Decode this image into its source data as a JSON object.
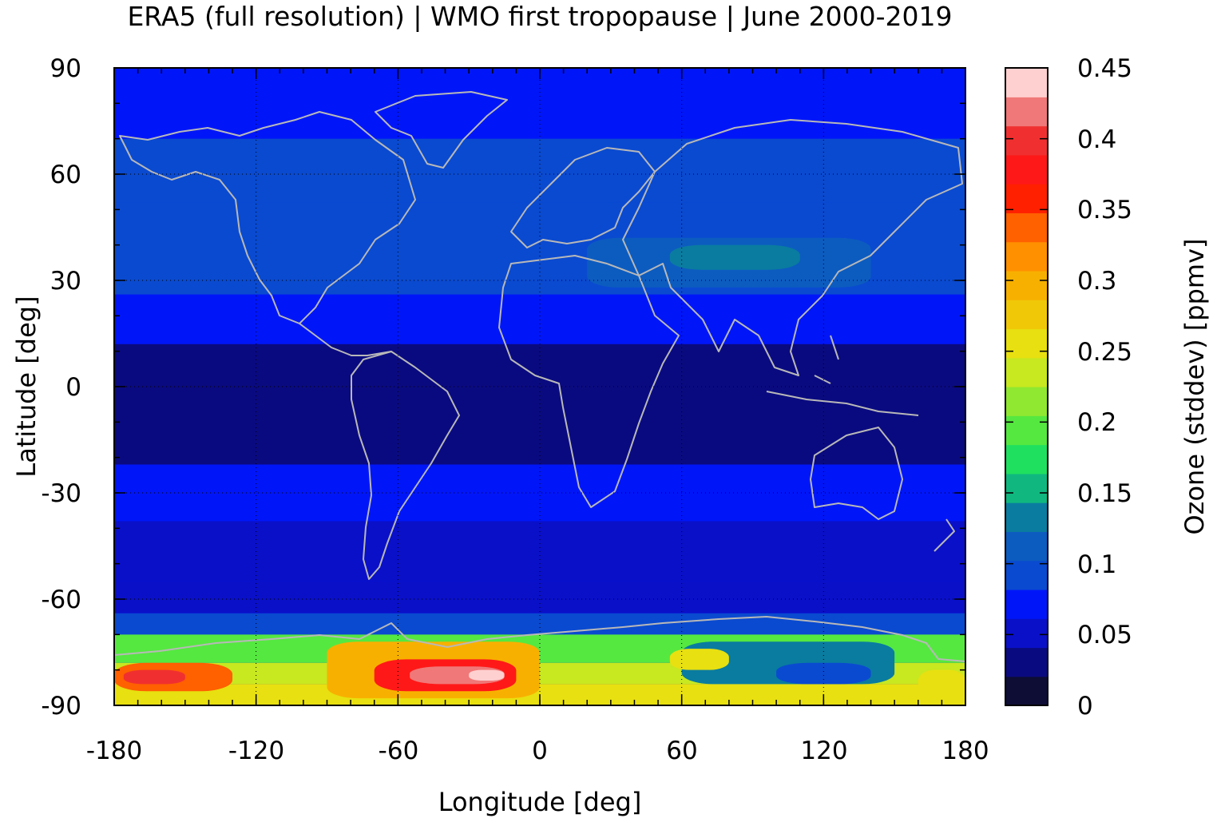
{
  "title": "ERA5 (full resolution) | WMO first tropopause | June 2000-2019",
  "map": {
    "xlabel": "Longitude [deg]",
    "ylabel": "Latitude [deg]",
    "xlim": [
      -180,
      180
    ],
    "ylim": [
      -90,
      90
    ],
    "xticks": [
      "-180",
      "-120",
      "-60",
      "0",
      "60",
      "120",
      "180"
    ],
    "yticks": [
      "90",
      "60",
      "30",
      "0",
      "-30",
      "-60",
      "-90"
    ],
    "grid": true,
    "coastline_color": "#b8b8b8",
    "field_bands": [
      {
        "lat": [
          70,
          90
        ],
        "level": 0.075
      },
      {
        "lat": [
          52,
          70
        ],
        "level": 0.085
      },
      {
        "lat": [
          26,
          52
        ],
        "level": 0.09
      },
      {
        "lat": [
          12,
          26
        ],
        "level": 0.07
      },
      {
        "lat": [
          -22,
          12
        ],
        "level": 0.035
      },
      {
        "lat": [
          -38,
          -22
        ],
        "level": 0.065
      },
      {
        "lat": [
          -55,
          -38
        ],
        "level": 0.045
      },
      {
        "lat": [
          -64,
          -55
        ],
        "level": 0.06
      },
      {
        "lat": [
          -70,
          -64
        ],
        "level": 0.09
      },
      {
        "lat": [
          -78,
          -70
        ],
        "level": 0.2
      },
      {
        "lat": [
          -84,
          -78
        ],
        "level": 0.24
      },
      {
        "lat": [
          -90,
          -84
        ],
        "level": 0.25
      }
    ],
    "features": [
      {
        "name": "asia-jet",
        "lon": [
          20,
          140
        ],
        "lat": [
          28,
          42
        ],
        "level": 0.12
      },
      {
        "name": "asia-jet-core",
        "lon": [
          55,
          110
        ],
        "lat": [
          33,
          40
        ],
        "level": 0.14
      },
      {
        "name": "north-pacific",
        "lon": [
          -180,
          -100
        ],
        "lat": [
          30,
          50
        ],
        "level": 0.1
      },
      {
        "name": "southern-band",
        "lon": [
          0,
          180
        ],
        "lat": [
          -34,
          -26
        ],
        "level": 0.08
      },
      {
        "name": "antarctic-east",
        "lon": [
          60,
          150
        ],
        "lat": [
          -84,
          -72
        ],
        "level": 0.14
      },
      {
        "name": "antarctic-east-low",
        "lon": [
          100,
          140
        ],
        "lat": [
          -84,
          -78
        ],
        "level": 0.1
      },
      {
        "name": "antarctic-west-high",
        "lon": [
          -180,
          -130
        ],
        "lat": [
          -86,
          -78
        ],
        "level": 0.33
      },
      {
        "name": "antarctic-west-peak",
        "lon": [
          -176,
          -150
        ],
        "lat": [
          -84,
          -80
        ],
        "level": 0.39
      },
      {
        "name": "weddell-high",
        "lon": [
          -90,
          0
        ],
        "lat": [
          -88,
          -72
        ],
        "level": 0.3
      },
      {
        "name": "weddell-peak",
        "lon": [
          -70,
          -10
        ],
        "lat": [
          -86,
          -77
        ],
        "level": 0.38
      },
      {
        "name": "weddell-core",
        "lon": [
          -55,
          -15
        ],
        "lat": [
          -84,
          -79
        ],
        "level": 0.42
      },
      {
        "name": "weddell-max",
        "lon": [
          -30,
          -15
        ],
        "lat": [
          -83,
          -80
        ],
        "level": 0.45
      },
      {
        "name": "indian-ocean-high",
        "lon": [
          55,
          80
        ],
        "lat": [
          -80,
          -74
        ],
        "level": 0.26
      },
      {
        "name": "pacific-sector-high",
        "lon": [
          160,
          180
        ],
        "lat": [
          -88,
          -80
        ],
        "level": 0.25
      }
    ]
  },
  "colorbar": {
    "label": "Ozone (stddev) [ppmv]",
    "ticks": [
      "0",
      "0.05",
      "0.1",
      "0.15",
      "0.2",
      "0.25",
      "0.3",
      "0.35",
      "0.4",
      "0.45"
    ],
    "range": [
      0,
      0.45
    ],
    "colors": [
      "#0d0d35",
      "#0a0a80",
      "#0a10c8",
      "#0016f8",
      "#0a4ad0",
      "#0c5cc0",
      "#0a7ca0",
      "#10b880",
      "#20e060",
      "#55e840",
      "#90e830",
      "#c8e820",
      "#e8e010",
      "#f0c808",
      "#f8b000",
      "#ff9000",
      "#ff6000",
      "#ff2000",
      "#ff1818",
      "#f03030",
      "#f07878",
      "#ffd0d0"
    ]
  }
}
